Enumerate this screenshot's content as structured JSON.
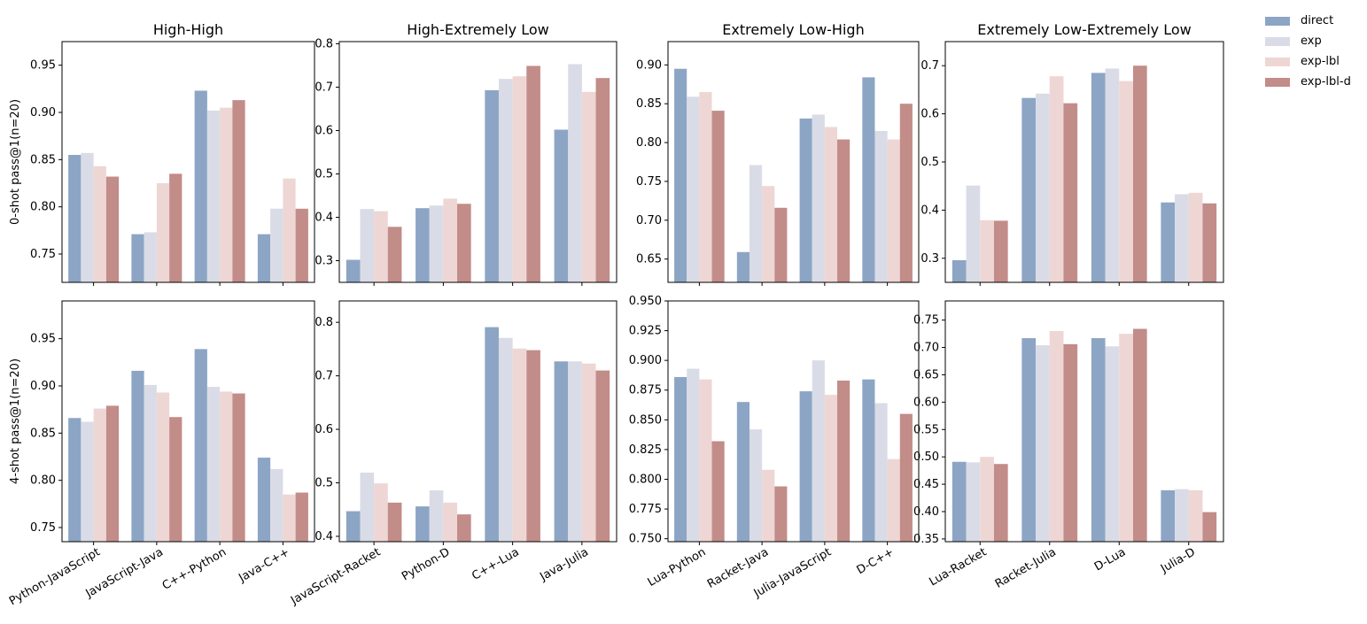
{
  "legend": {
    "items": [
      {
        "label": "direct",
        "color": "#8da5c5"
      },
      {
        "label": "exp",
        "color": "#d9dce6"
      },
      {
        "label": "exp-lbl",
        "color": "#eed6d4"
      },
      {
        "label": "exp-lbl-d",
        "color": "#c28c89"
      }
    ]
  },
  "rows": [
    {
      "ylabel": "0-shot pass@1(n=20)"
    },
    {
      "ylabel": "4-shot pass@1(n=20)"
    }
  ],
  "chart_data": [
    {
      "type": "bar",
      "title": "High-High",
      "ylabel": "0-shot pass@1(n=20)",
      "categories": [
        "Python-JavaScript",
        "JavaScript-Java",
        "C++-Python",
        "Java-C++"
      ],
      "ylim": [
        0.72,
        0.975
      ],
      "yticks": [
        0.75,
        0.8,
        0.85,
        0.9,
        0.95
      ],
      "ytick_labels": [
        "0.75",
        "0.80",
        "0.85",
        "0.90",
        "0.95"
      ],
      "show_xticklabels": false,
      "series": [
        {
          "name": "direct",
          "values": [
            0.855,
            0.771,
            0.923,
            0.771
          ]
        },
        {
          "name": "exp",
          "values": [
            0.857,
            0.773,
            0.902,
            0.798
          ]
        },
        {
          "name": "exp-lbl",
          "values": [
            0.843,
            0.825,
            0.905,
            0.83
          ]
        },
        {
          "name": "exp-lbl-d",
          "values": [
            0.832,
            0.835,
            0.913,
            0.798
          ]
        }
      ]
    },
    {
      "type": "bar",
      "title": "High-Extremely Low",
      "ylabel": "",
      "categories": [
        "JavaScript-Racket",
        "Python-D",
        "C++-Lua",
        "Java-Julia"
      ],
      "ylim": [
        0.25,
        0.805
      ],
      "yticks": [
        0.3,
        0.4,
        0.5,
        0.6,
        0.7,
        0.8
      ],
      "ytick_labels": [
        "0.3",
        "0.4",
        "0.5",
        "0.6",
        "0.7",
        "0.8"
      ],
      "show_xticklabels": false,
      "series": [
        {
          "name": "direct",
          "values": [
            0.302,
            0.421,
            0.693,
            0.602
          ]
        },
        {
          "name": "exp",
          "values": [
            0.419,
            0.427,
            0.719,
            0.753
          ]
        },
        {
          "name": "exp-lbl",
          "values": [
            0.414,
            0.443,
            0.725,
            0.689
          ]
        },
        {
          "name": "exp-lbl-d",
          "values": [
            0.378,
            0.431,
            0.749,
            0.721
          ]
        }
      ]
    },
    {
      "type": "bar",
      "title": "Extremely Low-High",
      "ylabel": "",
      "categories": [
        "Lua-Python",
        "Racket-Java",
        "Julia-JavaScript",
        "D-C++"
      ],
      "ylim": [
        0.62,
        0.93
      ],
      "yticks": [
        0.65,
        0.7,
        0.75,
        0.8,
        0.85,
        0.9
      ],
      "ytick_labels": [
        "0.65",
        "0.70",
        "0.75",
        "0.80",
        "0.85",
        "0.90"
      ],
      "show_xticklabels": false,
      "series": [
        {
          "name": "direct",
          "values": [
            0.895,
            0.659,
            0.831,
            0.884
          ]
        },
        {
          "name": "exp",
          "values": [
            0.859,
            0.771,
            0.836,
            0.815
          ]
        },
        {
          "name": "exp-lbl",
          "values": [
            0.865,
            0.744,
            0.82,
            0.804
          ]
        },
        {
          "name": "exp-lbl-d",
          "values": [
            0.841,
            0.716,
            0.804,
            0.85
          ]
        }
      ]
    },
    {
      "type": "bar",
      "title": "Extremely Low-Extremely Low",
      "ylabel": "",
      "categories": [
        "Lua-Racket",
        "Racket-Julia",
        "D-Lua",
        "Julia-D"
      ],
      "ylim": [
        0.25,
        0.75
      ],
      "yticks": [
        0.3,
        0.4,
        0.5,
        0.6,
        0.7
      ],
      "ytick_labels": [
        "0.3",
        "0.4",
        "0.5",
        "0.6",
        "0.7"
      ],
      "show_xticklabels": false,
      "series": [
        {
          "name": "direct",
          "values": [
            0.296,
            0.633,
            0.685,
            0.416
          ]
        },
        {
          "name": "exp",
          "values": [
            0.451,
            0.642,
            0.694,
            0.433
          ]
        },
        {
          "name": "exp-lbl",
          "values": [
            0.379,
            0.678,
            0.668,
            0.436
          ]
        },
        {
          "name": "exp-lbl-d",
          "values": [
            0.378,
            0.622,
            0.7,
            0.414
          ]
        }
      ]
    },
    {
      "type": "bar",
      "title": "",
      "ylabel": "4-shot pass@1(n=20)",
      "categories": [
        "Python-JavaScript",
        "JavaScript-Java",
        "C++-Python",
        "Java-C++"
      ],
      "ylim": [
        0.735,
        0.99
      ],
      "yticks": [
        0.75,
        0.8,
        0.85,
        0.9,
        0.95
      ],
      "ytick_labels": [
        "0.75",
        "0.80",
        "0.85",
        "0.90",
        "0.95"
      ],
      "show_xticklabels": true,
      "series": [
        {
          "name": "direct",
          "values": [
            0.866,
            0.916,
            0.939,
            0.824
          ]
        },
        {
          "name": "exp",
          "values": [
            0.862,
            0.901,
            0.899,
            0.812
          ]
        },
        {
          "name": "exp-lbl",
          "values": [
            0.876,
            0.893,
            0.894,
            0.785
          ]
        },
        {
          "name": "exp-lbl-d",
          "values": [
            0.879,
            0.867,
            0.892,
            0.787
          ]
        }
      ]
    },
    {
      "type": "bar",
      "title": "",
      "ylabel": "",
      "categories": [
        "JavaScript-Racket",
        "Python-D",
        "C++-Lua",
        "Java-Julia"
      ],
      "ylim": [
        0.39,
        0.84
      ],
      "yticks": [
        0.4,
        0.5,
        0.6,
        0.7,
        0.8
      ],
      "ytick_labels": [
        "0.4",
        "0.5",
        "0.6",
        "0.7",
        "0.8"
      ],
      "show_xticklabels": true,
      "series": [
        {
          "name": "direct",
          "values": [
            0.447,
            0.456,
            0.791,
            0.727
          ]
        },
        {
          "name": "exp",
          "values": [
            0.519,
            0.486,
            0.771,
            0.727
          ]
        },
        {
          "name": "exp-lbl",
          "values": [
            0.499,
            0.463,
            0.751,
            0.723
          ]
        },
        {
          "name": "exp-lbl-d",
          "values": [
            0.463,
            0.441,
            0.748,
            0.71
          ]
        }
      ]
    },
    {
      "type": "bar",
      "title": "",
      "ylabel": "",
      "categories": [
        "Lua-Python",
        "Racket-Java",
        "Julia-JavaScript",
        "D-C++"
      ],
      "ylim": [
        0.7475,
        0.95
      ],
      "yticks": [
        0.75,
        0.775,
        0.8,
        0.825,
        0.85,
        0.875,
        0.9,
        0.925,
        0.95
      ],
      "ytick_labels": [
        "0.750",
        "0.775",
        "0.800",
        "0.825",
        "0.850",
        "0.875",
        "0.900",
        "0.925",
        "0.950"
      ],
      "show_xticklabels": true,
      "series": [
        {
          "name": "direct",
          "values": [
            0.886,
            0.865,
            0.874,
            0.884
          ]
        },
        {
          "name": "exp",
          "values": [
            0.893,
            0.842,
            0.9,
            0.864
          ]
        },
        {
          "name": "exp-lbl",
          "values": [
            0.884,
            0.808,
            0.871,
            0.817
          ]
        },
        {
          "name": "exp-lbl-d",
          "values": [
            0.832,
            0.794,
            0.883,
            0.855
          ]
        }
      ]
    },
    {
      "type": "bar",
      "title": "",
      "ylabel": "",
      "categories": [
        "Lua-Racket",
        "Racket-Julia",
        "D-Lua",
        "Julia-D"
      ],
      "ylim": [
        0.345,
        0.785
      ],
      "yticks": [
        0.35,
        0.4,
        0.45,
        0.5,
        0.55,
        0.6,
        0.65,
        0.7,
        0.75
      ],
      "ytick_labels": [
        "0.35",
        "0.40",
        "0.45",
        "0.50",
        "0.55",
        "0.60",
        "0.65",
        "0.70",
        "0.75"
      ],
      "show_xticklabels": true,
      "series": [
        {
          "name": "direct",
          "values": [
            0.491,
            0.717,
            0.717,
            0.439
          ]
        },
        {
          "name": "exp",
          "values": [
            0.49,
            0.704,
            0.702,
            0.441
          ]
        },
        {
          "name": "exp-lbl",
          "values": [
            0.5,
            0.73,
            0.725,
            0.439
          ]
        },
        {
          "name": "exp-lbl-d",
          "values": [
            0.487,
            0.706,
            0.734,
            0.399
          ]
        }
      ]
    }
  ]
}
